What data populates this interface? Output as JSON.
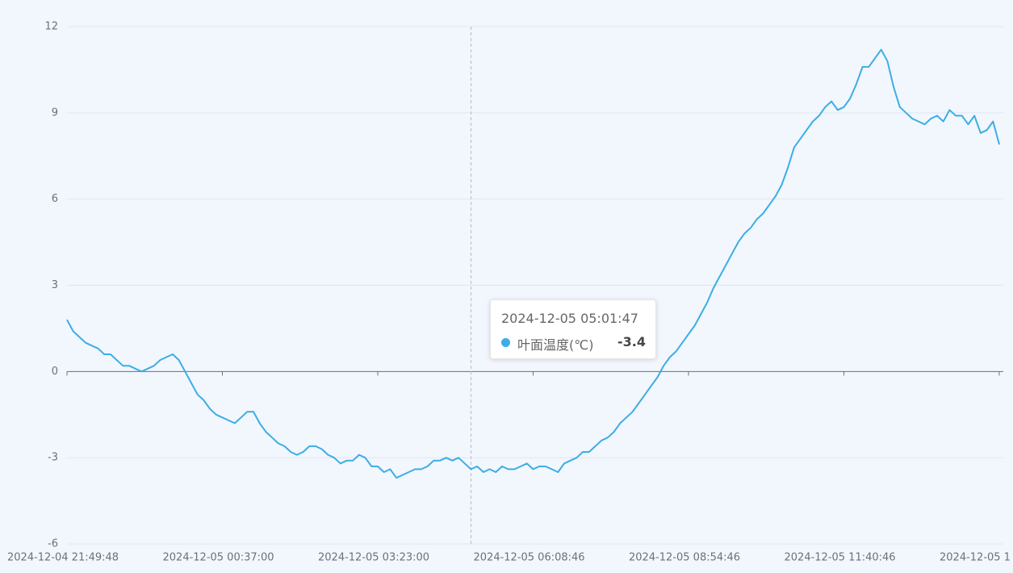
{
  "chart_data": {
    "type": "line",
    "x": [
      "2024-12-04 21:49:48",
      null,
      null,
      null,
      null,
      null,
      null,
      null,
      null,
      null,
      null,
      null,
      null,
      null,
      null,
      null,
      null,
      null,
      null,
      null,
      null,
      null,
      null,
      null,
      null,
      "2024-12-05 00:37:00",
      null,
      null,
      null,
      null,
      null,
      null,
      null,
      null,
      null,
      null,
      null,
      null,
      null,
      null,
      null,
      null,
      null,
      null,
      null,
      null,
      null,
      null,
      null,
      null,
      "2024-12-05 03:23:00",
      null,
      null,
      null,
      null,
      null,
      null,
      null,
      null,
      null,
      null,
      null,
      null,
      null,
      null,
      null,
      null,
      null,
      null,
      null,
      null,
      null,
      null,
      null,
      null,
      "2024-12-05 06:08:46",
      null,
      null,
      null,
      null,
      null,
      null,
      null,
      null,
      null,
      null,
      null,
      null,
      null,
      null,
      null,
      null,
      null,
      null,
      null,
      null,
      null,
      null,
      null,
      null,
      "2024-12-05 08:54:46",
      null,
      null,
      null,
      null,
      null,
      null,
      null,
      null,
      null,
      null,
      null,
      null,
      null,
      null,
      null,
      null,
      null,
      null,
      null,
      null,
      null,
      null,
      null,
      null,
      "2024-12-05 11:40:46",
      null,
      null,
      null,
      null,
      null,
      null,
      null,
      null,
      null,
      null,
      null,
      null,
      null,
      null,
      null,
      null,
      null,
      null,
      null,
      null,
      null,
      null,
      null,
      null,
      "2024-12-05 1"
    ],
    "series": [
      {
        "name": "叶面温度(℃)",
        "color": "#3aaee5",
        "values": [
          1.8,
          1.4,
          1.2,
          1.0,
          0.9,
          0.8,
          0.6,
          0.6,
          0.4,
          0.2,
          0.2,
          0.1,
          0.0,
          0.1,
          0.2,
          0.4,
          0.5,
          0.6,
          0.4,
          0.0,
          -0.4,
          -0.8,
          -1.0,
          -1.3,
          -1.5,
          -1.6,
          -1.7,
          -1.8,
          -1.6,
          -1.4,
          -1.4,
          -1.8,
          -2.1,
          -2.3,
          -2.5,
          -2.6,
          -2.8,
          -2.9,
          -2.8,
          -2.6,
          -2.6,
          -2.7,
          -2.9,
          -3.0,
          -3.2,
          -3.1,
          -3.1,
          -2.9,
          -3.0,
          -3.3,
          -3.3,
          -3.5,
          -3.4,
          -3.7,
          -3.6,
          -3.5,
          -3.4,
          -3.4,
          -3.3,
          -3.1,
          -3.1,
          -3.0,
          -3.1,
          -3.0,
          -3.2,
          -3.4,
          -3.3,
          -3.5,
          -3.4,
          -3.5,
          -3.3,
          -3.4,
          -3.4,
          -3.3,
          -3.2,
          -3.4,
          -3.3,
          -3.3,
          -3.4,
          -3.5,
          -3.2,
          -3.1,
          -3.0,
          -2.8,
          -2.8,
          -2.6,
          -2.4,
          -2.3,
          -2.1,
          -1.8,
          -1.6,
          -1.4,
          -1.1,
          -0.8,
          -0.5,
          -0.2,
          0.2,
          0.5,
          0.7,
          1.0,
          1.3,
          1.6,
          2.0,
          2.4,
          2.9,
          3.3,
          3.7,
          4.1,
          4.5,
          4.8,
          5.0,
          5.3,
          5.5,
          5.8,
          6.1,
          6.5,
          7.1,
          7.8,
          8.1,
          8.4,
          8.7,
          8.9,
          9.2,
          9.4,
          9.1,
          9.2,
          9.5,
          10.0,
          10.6,
          10.6,
          10.9,
          11.2,
          10.8,
          9.9,
          9.2,
          9.0,
          8.8,
          8.7,
          8.6,
          8.8,
          8.9,
          8.7,
          9.1,
          8.9,
          8.9,
          8.6,
          8.9,
          8.3,
          8.4,
          8.7,
          7.9
        ]
      }
    ],
    "ylim": [
      -6,
      12
    ],
    "yticks": [
      -6,
      -3,
      0,
      3,
      6,
      9,
      12
    ],
    "grid": true,
    "tooltip": {
      "title": "2024-12-05 05:01:47"
    }
  }
}
